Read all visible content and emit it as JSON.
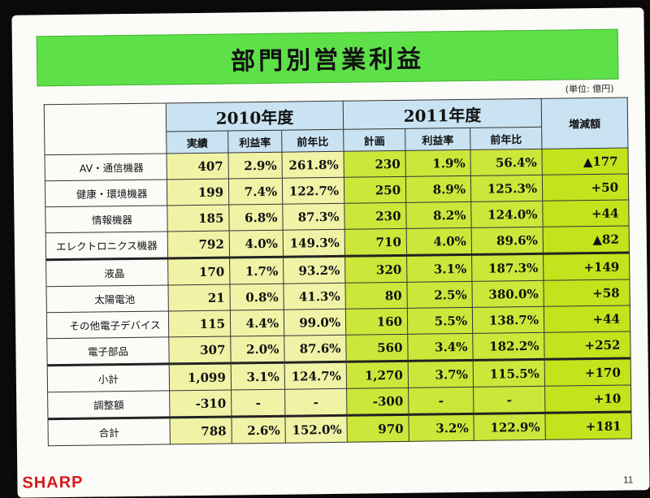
{
  "title": "部門別営業利益",
  "unit": "(単位: 億円)",
  "headers": {
    "year2010": "2010年度",
    "year2011": "2011年度",
    "diff": "増減額",
    "col_actual": "実績",
    "col_margin": "利益率",
    "col_yoy": "前年比",
    "col_plan": "計画",
    "col_margin2": "利益率",
    "col_yoy2": "前年比"
  },
  "rows": [
    {
      "label": "AV・通信機器",
      "a": "407",
      "m": "2.9%",
      "y": "261.8%",
      "p": "230",
      "m2": "1.9%",
      "y2": "56.4%",
      "d": "▲177"
    },
    {
      "label": "健康・環境機器",
      "a": "199",
      "m": "7.4%",
      "y": "122.7%",
      "p": "250",
      "m2": "8.9%",
      "y2": "125.3%",
      "d": "+50"
    },
    {
      "label": "情報機器",
      "a": "185",
      "m": "6.8%",
      "y": "87.3%",
      "p": "230",
      "m2": "8.2%",
      "y2": "124.0%",
      "d": "+44"
    },
    {
      "label": "エレクトロニクス機器",
      "a": "792",
      "m": "4.0%",
      "y": "149.3%",
      "p": "710",
      "m2": "4.0%",
      "y2": "89.6%",
      "d": "▲82"
    },
    {
      "label": "液晶",
      "a": "170",
      "m": "1.7%",
      "y": "93.2%",
      "p": "320",
      "m2": "3.1%",
      "y2": "187.3%",
      "d": "+149"
    },
    {
      "label": "太陽電池",
      "a": "21",
      "m": "0.8%",
      "y": "41.3%",
      "p": "80",
      "m2": "2.5%",
      "y2": "380.0%",
      "d": "+58"
    },
    {
      "label": "その他電子デバイス",
      "a": "115",
      "m": "4.4%",
      "y": "99.0%",
      "p": "160",
      "m2": "5.5%",
      "y2": "138.7%",
      "d": "+44"
    },
    {
      "label": "電子部品",
      "a": "307",
      "m": "2.0%",
      "y": "87.6%",
      "p": "560",
      "m2": "3.4%",
      "y2": "182.2%",
      "d": "+252"
    },
    {
      "label": "小計",
      "a": "1,099",
      "m": "3.1%",
      "y": "124.7%",
      "p": "1,270",
      "m2": "3.7%",
      "y2": "115.5%",
      "d": "+170"
    },
    {
      "label": "調整額",
      "a": "-310",
      "m": "-",
      "y": "-",
      "p": "-300",
      "m2": "-",
      "y2": "-",
      "d": "+10"
    },
    {
      "label": "合計",
      "a": "788",
      "m": "2.6%",
      "y": "152.0%",
      "p": "970",
      "m2": "3.2%",
      "y2": "122.9%",
      "d": "+181"
    }
  ],
  "logo": "SHARP",
  "page_number": "11"
}
